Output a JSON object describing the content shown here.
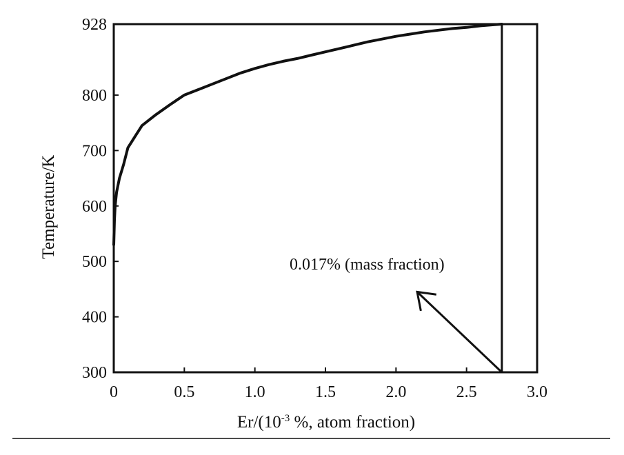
{
  "chart_data": {
    "type": "line",
    "xlabel_main": "Er/(10",
    "xlabel_sup": "-3",
    "xlabel_rest": " %, atom fraction)",
    "ylabel": "Temperature/K",
    "xlim": [
      0,
      3.0
    ],
    "ylim": [
      300,
      928
    ],
    "x_ticks": [
      {
        "value": 0,
        "label": "0"
      },
      {
        "value": 0.5,
        "label": "0.5"
      },
      {
        "value": 1.0,
        "label": "1.0"
      },
      {
        "value": 1.5,
        "label": "1.5"
      },
      {
        "value": 2.0,
        "label": "2.0"
      },
      {
        "value": 2.5,
        "label": "2.5"
      },
      {
        "value": 3.0,
        "label": "3.0"
      }
    ],
    "y_ticks": [
      {
        "value": 300,
        "label": "300"
      },
      {
        "value": 400,
        "label": "400"
      },
      {
        "value": 500,
        "label": "500"
      },
      {
        "value": 600,
        "label": "600"
      },
      {
        "value": 700,
        "label": "700"
      },
      {
        "value": 800,
        "label": "800"
      },
      {
        "value": 928,
        "label": "928"
      }
    ],
    "series": [
      {
        "x": [
          0.0,
          0.005,
          0.01,
          0.02,
          0.04,
          0.07,
          0.1,
          0.15,
          0.2,
          0.25,
          0.3,
          0.4,
          0.5,
          0.6,
          0.7,
          0.8,
          0.9,
          1.0,
          1.1,
          1.2,
          1.3,
          1.4,
          1.5,
          1.6,
          1.7,
          1.8,
          1.9,
          2.0,
          2.1,
          2.2,
          2.3,
          2.4,
          2.5,
          2.6,
          2.7,
          2.75
        ],
        "y": [
          530,
          575,
          600,
          625,
          650,
          675,
          705,
          725,
          745,
          755,
          765,
          783,
          800,
          810,
          820,
          830,
          840,
          848,
          855,
          861,
          866,
          872,
          878,
          884,
          890,
          896,
          901,
          906,
          910,
          914,
          917,
          920,
          922,
          925,
          927,
          928
        ]
      }
    ],
    "marker_x": 2.75,
    "annotation": {
      "text": "0.017% (mass fraction)",
      "arrow_from": [
        2.75,
        300
      ],
      "arrow_to": [
        2.15,
        445
      ]
    }
  }
}
